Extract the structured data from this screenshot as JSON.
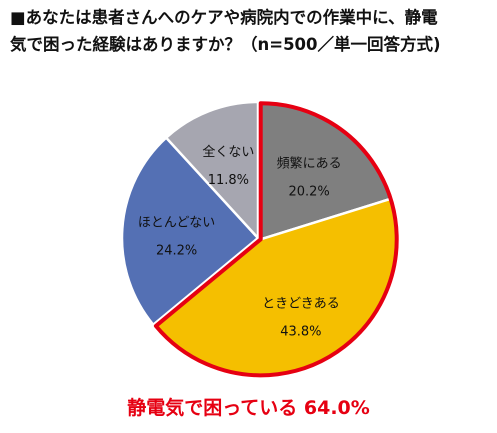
{
  "title": {
    "line1": "■あなたは患者さんへのケアや病院内での作業中に、静電",
    "line2": "気で困った経験はありますか？（n=500／単一回答方式)"
  },
  "chart_data": {
    "type": "pie",
    "start_angle_deg": 0,
    "direction": "clockwise",
    "slices": [
      {
        "label": "頻繁にある",
        "value": 20.2,
        "display": "20.2%",
        "color": "#7f7f7f",
        "highlight": true
      },
      {
        "label": "ときどきある",
        "value": 43.8,
        "display": "43.8%",
        "color": "#f5bf00",
        "highlight": true
      },
      {
        "label": "ほとんどない",
        "value": 24.2,
        "display": "24.2%",
        "color": "#5470b4",
        "highlight": false
      },
      {
        "label": "全くない",
        "value": 11.8,
        "display": "11.8%",
        "color": "#a6a6b0",
        "highlight": false
      }
    ],
    "highlight_color": "#e60012"
  },
  "callout": {
    "text": "静電気で困っている",
    "value": "64.0%",
    "color": "#e60012"
  }
}
